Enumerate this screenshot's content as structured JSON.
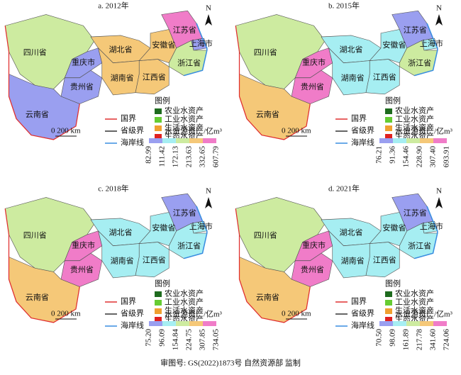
{
  "panels": [
    {
      "title": "a. 2012年",
      "breaks": [
        "82.99",
        "111.42",
        "172.13",
        "213.63",
        "332.65",
        "607.79"
      ],
      "provinces": [
        {
          "label": "四川省",
          "color": "#cdeba0"
        },
        {
          "label": "重庆市",
          "color": "#9a9ff0"
        },
        {
          "label": "贵州省",
          "color": "#9a9ff0"
        },
        {
          "label": "云南省",
          "color": "#9a9ff0"
        },
        {
          "label": "湖北省",
          "color": "#f5c878"
        },
        {
          "label": "湖南省",
          "color": "#f5c878"
        },
        {
          "label": "江西省",
          "color": "#f5c878"
        },
        {
          "label": "安徽省",
          "color": "#f5c878"
        },
        {
          "label": "江苏省",
          "color": "#f07cc8"
        },
        {
          "label": "上海市",
          "color": "#9a9ff0"
        },
        {
          "label": "浙江省",
          "color": "#cdeba0"
        }
      ]
    },
    {
      "title": "b. 2015年",
      "breaks": [
        "76.21",
        "91.36",
        "154.46",
        "228.90",
        "307.40",
        "693.91"
      ],
      "provinces": [
        {
          "label": "四川省",
          "color": "#cdeba0"
        },
        {
          "label": "重庆市",
          "color": "#f07cc8"
        },
        {
          "label": "贵州省",
          "color": "#f07cc8"
        },
        {
          "label": "云南省",
          "color": "#f5c878"
        },
        {
          "label": "湖北省",
          "color": "#a6eef2"
        },
        {
          "label": "湖南省",
          "color": "#a6eef2"
        },
        {
          "label": "江西省",
          "color": "#a6eef2"
        },
        {
          "label": "安徽省",
          "color": "#a6eef2"
        },
        {
          "label": "江苏省",
          "color": "#9a9ff0"
        },
        {
          "label": "上海市",
          "color": "#a6eef2"
        },
        {
          "label": "浙江省",
          "color": "#cdeba0"
        }
      ]
    },
    {
      "title": "c. 2018年",
      "breaks": [
        "75.20",
        "96.09",
        "154.84",
        "224.75",
        "307.85",
        "734.05"
      ],
      "provinces": [
        {
          "label": "四川省",
          "color": "#cdeba0"
        },
        {
          "label": "重庆市",
          "color": "#f07cc8"
        },
        {
          "label": "贵州省",
          "color": "#f07cc8"
        },
        {
          "label": "云南省",
          "color": "#f5c878"
        },
        {
          "label": "湖北省",
          "color": "#a6eef2"
        },
        {
          "label": "湖南省",
          "color": "#a6eef2"
        },
        {
          "label": "江西省",
          "color": "#a6eef2"
        },
        {
          "label": "安徽省",
          "color": "#a6eef2"
        },
        {
          "label": "江苏省",
          "color": "#9a9ff0"
        },
        {
          "label": "上海市",
          "color": "#a6eef2"
        },
        {
          "label": "浙江省",
          "color": "#a6eef2"
        }
      ]
    },
    {
      "title": "d. 2021年",
      "breaks": [
        "70.50",
        "98.09",
        "161.89",
        "217.78",
        "341.60",
        "724.06"
      ],
      "provinces": [
        {
          "label": "四川省",
          "color": "#cdeba0"
        },
        {
          "label": "重庆市",
          "color": "#f07cc8"
        },
        {
          "label": "贵州省",
          "color": "#f07cc8"
        },
        {
          "label": "云南省",
          "color": "#f5c878"
        },
        {
          "label": "湖北省",
          "color": "#a6eef2"
        },
        {
          "label": "湖南省",
          "color": "#a6eef2"
        },
        {
          "label": "江西省",
          "color": "#a6eef2"
        },
        {
          "label": "安徽省",
          "color": "#a6eef2"
        },
        {
          "label": "江苏省",
          "color": "#9a9ff0"
        },
        {
          "label": "上海市",
          "color": "#a6eef2"
        },
        {
          "label": "浙江省",
          "color": "#a6eef2"
        }
      ]
    }
  ],
  "legend": {
    "title": "图例",
    "items": [
      {
        "label": "农业水资产",
        "color": "#1e6b1e"
      },
      {
        "label": "工业水资产",
        "color": "#66cc33"
      },
      {
        "label": "生活水资产",
        "color": "#f0a030"
      },
      {
        "label": "生态水资产",
        "color": "#e02020"
      }
    ],
    "lines": [
      {
        "label": "国界",
        "color": "#e03030"
      },
      {
        "label": "省级界",
        "color": "#333333"
      },
      {
        "label": "海岸线",
        "color": "#3a8ee0"
      }
    ]
  },
  "scale": "0  200 km",
  "north": "N",
  "ramp_title": "水资源资产/亿m³",
  "ramp_colors": [
    "#9a9ff0",
    "#a6eef2",
    "#cdeba0",
    "#f5c878",
    "#f07cc8"
  ],
  "footer": "审图号: GS(2022)1873号    自然资源部  监制"
}
